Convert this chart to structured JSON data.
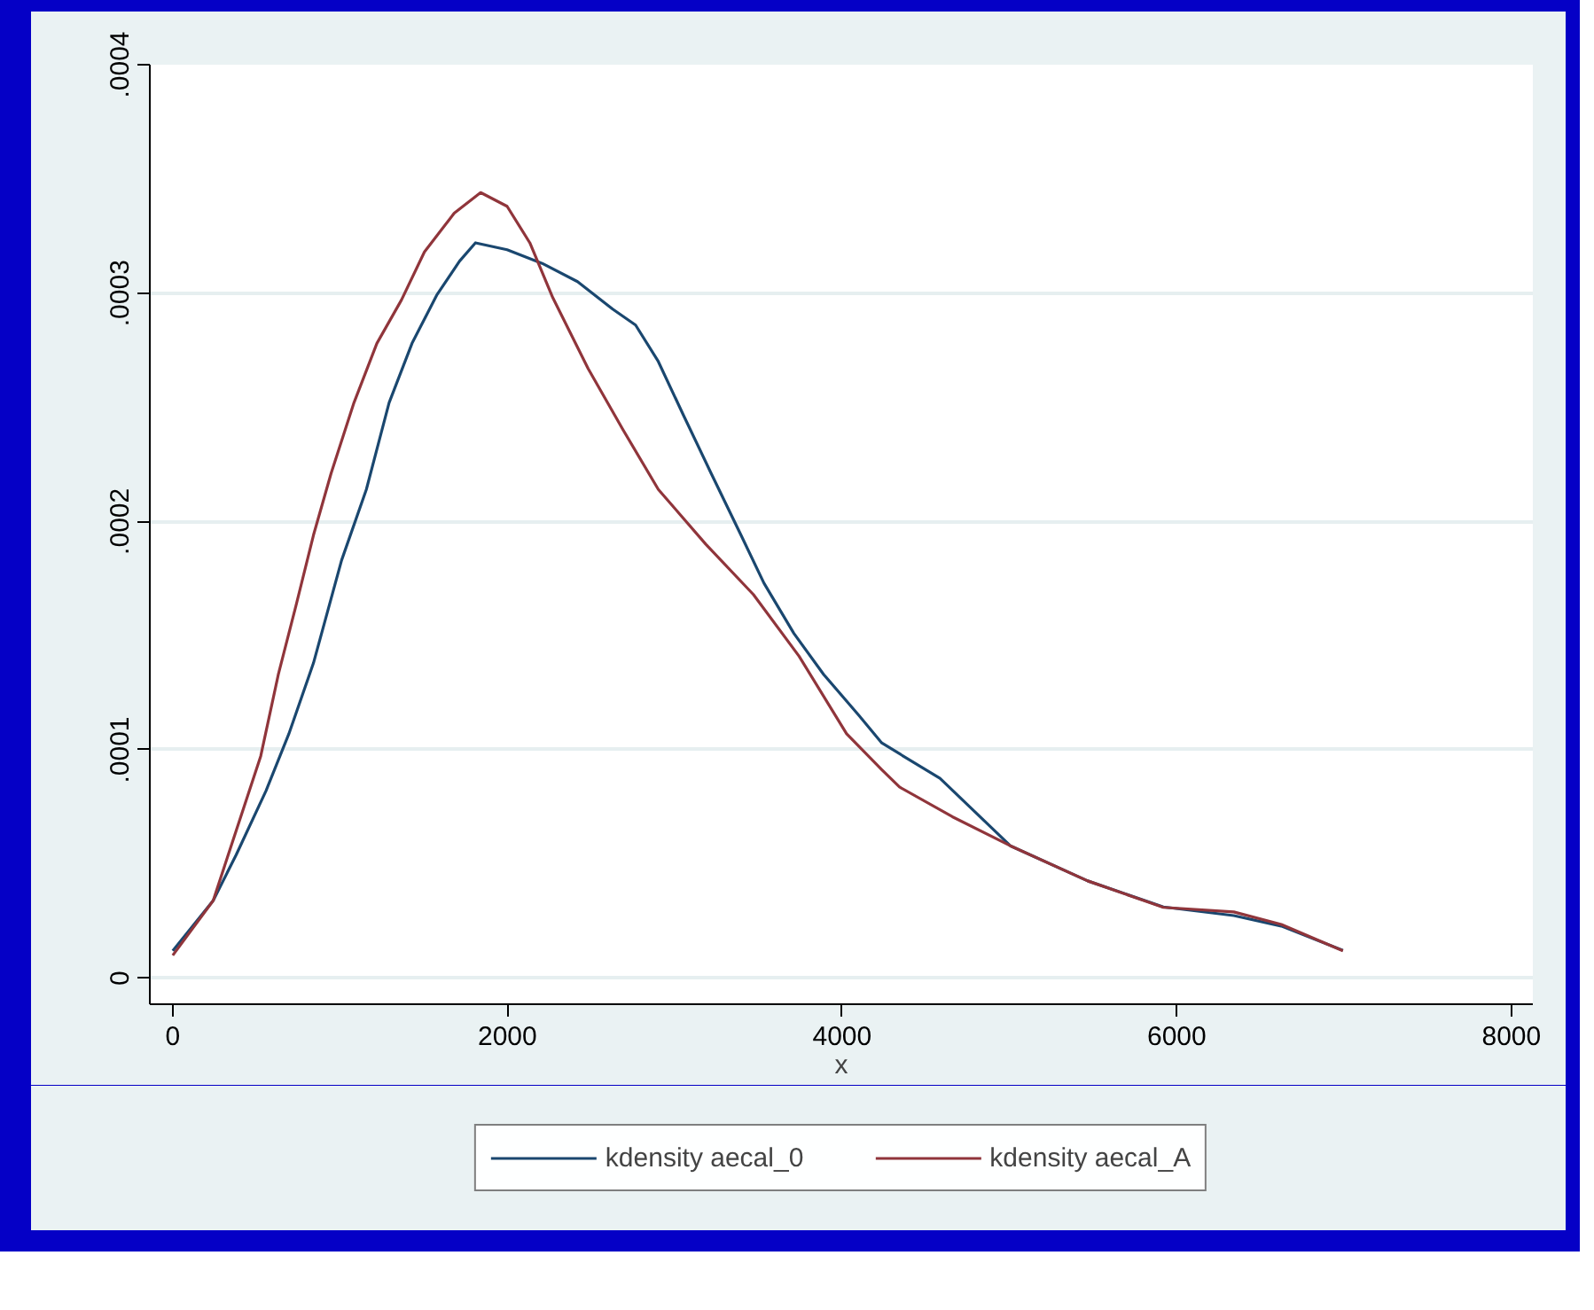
{
  "chart_data": {
    "type": "line",
    "xlabel": "x",
    "xlim": [
      -137,
      8128
    ],
    "ylim": [
      -1.14e-05,
      0.0004
    ],
    "xticks": [
      0,
      2000,
      4000,
      6000,
      8000
    ],
    "yticks": [
      {
        "value": 0,
        "label": "0"
      },
      {
        "value": 0.0001,
        "label": ".0001"
      },
      {
        "value": 0.0002,
        "label": ".0002"
      },
      {
        "value": 0.0003,
        "label": ".0003"
      },
      {
        "value": 0.0004,
        "label": ".0004"
      }
    ],
    "grid": "y",
    "legend": "bottom",
    "series": [
      {
        "name": "kdensity aecal_0",
        "color": "#1a476f",
        "x": [
          0,
          242,
          379,
          557,
          694,
          841,
          1009,
          1157,
          1293,
          1430,
          1577,
          1714,
          1809,
          1998,
          2208,
          2419,
          2629,
          2766,
          2902,
          3049,
          3218,
          3396,
          3533,
          3712,
          3890,
          4101,
          4237,
          4585,
          5005,
          5468,
          5920,
          6341,
          6625,
          6993
        ],
        "values": [
          1.2e-05,
          3.4e-05,
          5.4e-05,
          8.2e-05,
          0.000107,
          0.000138,
          0.000183,
          0.000214,
          0.000252,
          0.000278,
          0.000299,
          0.000314,
          0.000322,
          0.000319,
          0.000313,
          0.000305,
          0.000293,
          0.000286,
          0.00027,
          0.000247,
          0.000221,
          0.000194,
          0.000173,
          0.000151,
          0.000133,
          0.000115,
          0.000103,
          8.75e-05,
          5.8e-05,
          4.26e-05,
          3.12e-05,
          2.74e-05,
          2.28e-05,
          1.22e-05
        ]
      },
      {
        "name": "kdensity aecal_A",
        "color": "#90353b",
        "x": [
          0,
          242,
          379,
          526,
          631,
          736,
          841,
          946,
          1083,
          1220,
          1367,
          1504,
          1682,
          1840,
          1998,
          2134,
          2271,
          2482,
          2692,
          2902,
          3186,
          3470,
          3743,
          4027,
          4237,
          4343,
          4659,
          5005,
          5468,
          5920,
          6341,
          6625,
          6993
        ],
        "values": [
          1e-05,
          3.4e-05,
          6.46e-05,
          9.73e-05,
          0.000133,
          0.000163,
          0.000194,
          0.000221,
          0.000252,
          0.000278,
          0.000297,
          0.000318,
          0.000335,
          0.000344,
          0.000338,
          0.000322,
          0.000298,
          0.000267,
          0.00024,
          0.000214,
          0.00019,
          0.000168,
          0.000141,
          0.000107,
          9.13e-05,
          8.37e-05,
          7.07e-05,
          5.8e-05,
          4.26e-05,
          3.1e-05,
          2.9e-05,
          2.35e-05,
          1.2e-05
        ]
      }
    ]
  }
}
